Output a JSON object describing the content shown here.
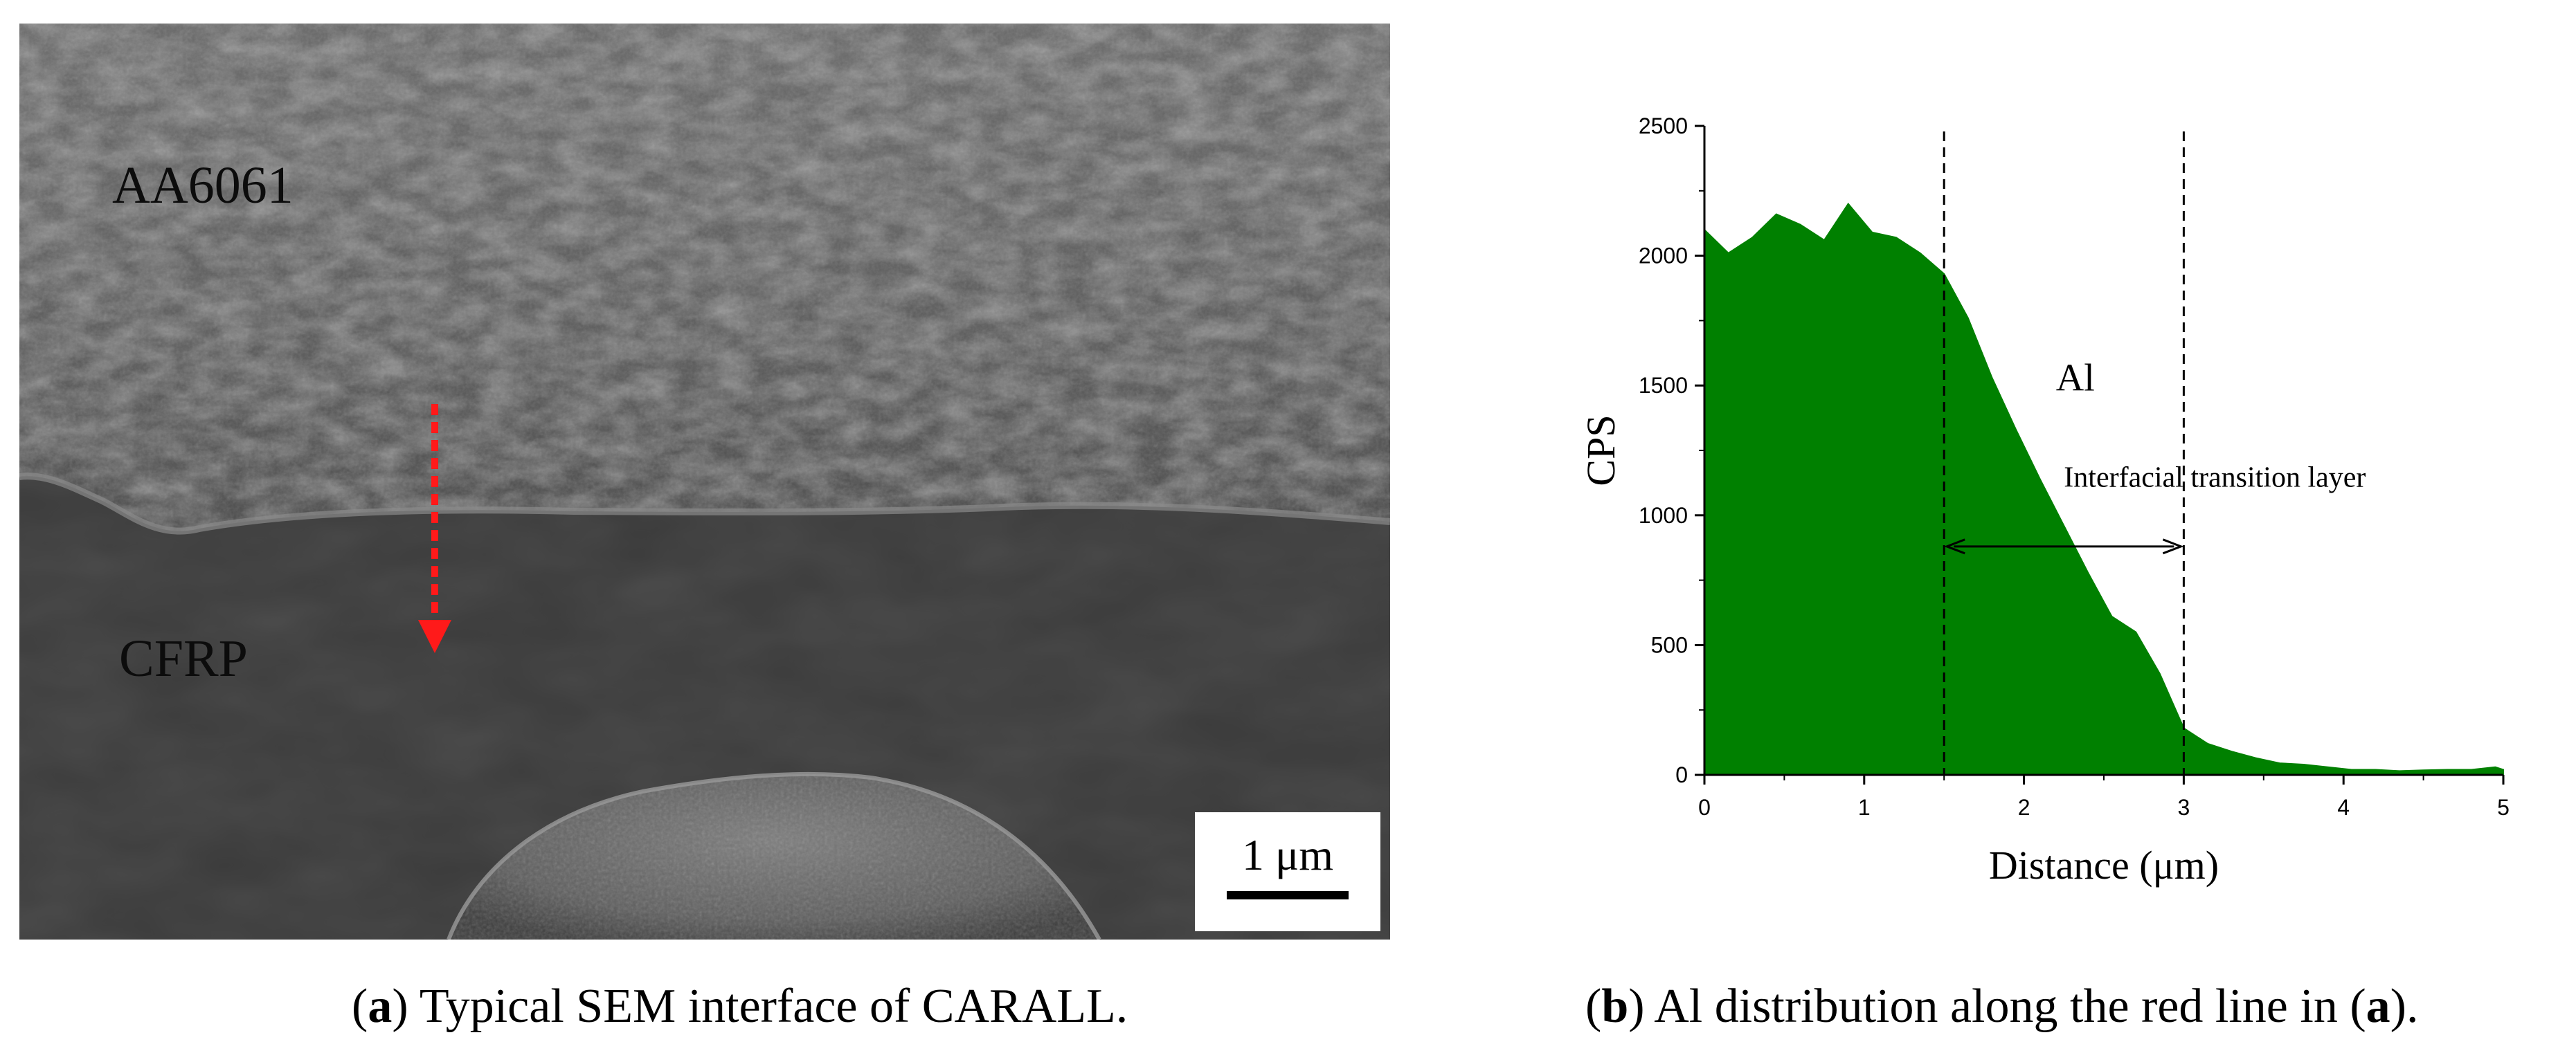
{
  "panel_a": {
    "labels": {
      "top_material": "AA6061",
      "bottom_material": "CFRP"
    },
    "scale_bar": "1 μm",
    "arrow_color": "#ff1a1a",
    "caption_letter": "a",
    "caption_prefix": "(",
    "caption_text": ") Typical SEM interface of CARALL."
  },
  "panel_b": {
    "caption_letter": "b",
    "caption_prefix": "(",
    "caption_text": ") Al distribution along the red line in (",
    "caption_ref": "a",
    "caption_suffix": ")."
  },
  "chart_data": {
    "type": "area",
    "title": "",
    "xlabel": "Distance (μm)",
    "ylabel": "CPS",
    "xlim": [
      0,
      5
    ],
    "ylim": [
      0,
      2500
    ],
    "xticks": [
      0,
      1,
      2,
      3,
      4,
      5
    ],
    "yticks": [
      0,
      500,
      1000,
      1500,
      2000,
      2500
    ],
    "grid": false,
    "fill_color": "#008000",
    "series": [
      {
        "name": "Al",
        "x": [
          0,
          0.15,
          0.3,
          0.45,
          0.6,
          0.75,
          0.9,
          1.05,
          1.2,
          1.35,
          1.5,
          1.65,
          1.8,
          1.95,
          2.1,
          2.25,
          2.4,
          2.55,
          2.7,
          2.85,
          3.0,
          3.15,
          3.3,
          3.45,
          3.6,
          3.75,
          3.9,
          4.05,
          4.2,
          4.35,
          4.5,
          4.65,
          4.8,
          4.95,
          5.0
        ],
        "y": [
          2100,
          2010,
          2070,
          2160,
          2120,
          2060,
          2200,
          2090,
          2070,
          2010,
          1930,
          1760,
          1530,
          1330,
          1140,
          960,
          780,
          610,
          550,
          390,
          180,
          120,
          90,
          65,
          45,
          40,
          30,
          20,
          20,
          15,
          18,
          20,
          20,
          30,
          20
        ]
      }
    ],
    "annotations": {
      "series_label": "Al",
      "region_label": "Interfacial transition layer",
      "dashed_lines_x": [
        1.5,
        3.0
      ],
      "arrow_y": 880
    }
  }
}
